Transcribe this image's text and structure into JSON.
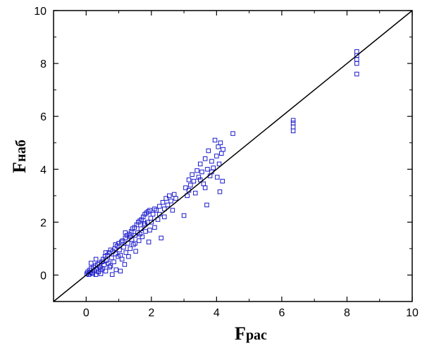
{
  "chart_data": {
    "type": "scatter",
    "title": "",
    "xlabel_main": "F",
    "xlabel_sub": "рас",
    "ylabel_main": "F",
    "ylabel_sub": "наб",
    "xlim": [
      -1,
      10
    ],
    "ylim": [
      -1,
      10
    ],
    "xticks": [
      0,
      2,
      4,
      6,
      8,
      10
    ],
    "yticks": [
      0,
      2,
      4,
      6,
      8,
      10
    ],
    "grid": false,
    "colors": {
      "points": "#1a1acc",
      "line": "#000000",
      "frame": "#000000"
    },
    "reference_line": {
      "from": [
        -1,
        -1
      ],
      "to": [
        10,
        10
      ]
    },
    "series": [
      {
        "points": [
          [
            0.02,
            0.05
          ],
          [
            0.05,
            0.12
          ],
          [
            0.08,
            0.02
          ],
          [
            0.1,
            0.18
          ],
          [
            0.12,
            0.08
          ],
          [
            0.15,
            0.25
          ],
          [
            0.18,
            0.1
          ],
          [
            0.2,
            0.05
          ],
          [
            0.22,
            0.3
          ],
          [
            0.25,
            0.15
          ],
          [
            0.28,
            0.35
          ],
          [
            0.3,
            0.02
          ],
          [
            0.32,
            0.22
          ],
          [
            0.35,
            0.4
          ],
          [
            0.38,
            0.12
          ],
          [
            0.4,
            0.45
          ],
          [
            0.42,
            0.3
          ],
          [
            0.45,
            0.05
          ],
          [
            0.48,
            0.5
          ],
          [
            0.5,
            0.25
          ],
          [
            0.52,
            0.6
          ],
          [
            0.55,
            0.38
          ],
          [
            0.58,
            0.7
          ],
          [
            0.6,
            0.15
          ],
          [
            0.62,
            0.55
          ],
          [
            0.65,
            0.75
          ],
          [
            0.68,
            0.45
          ],
          [
            0.7,
            0.85
          ],
          [
            0.72,
            0.3
          ],
          [
            0.75,
            0.95
          ],
          [
            0.78,
            0.65
          ],
          [
            0.8,
            0.02
          ],
          [
            0.82,
            0.9
          ],
          [
            0.85,
            0.5
          ],
          [
            0.88,
            1.0
          ],
          [
            0.9,
            0.8
          ],
          [
            0.92,
            0.2
          ],
          [
            0.95,
            1.1
          ],
          [
            0.98,
            0.7
          ],
          [
            1.0,
            1.2
          ],
          [
            1.02,
            0.95
          ],
          [
            1.05,
            0.15
          ],
          [
            1.08,
            1.25
          ],
          [
            1.1,
            0.6
          ],
          [
            1.12,
            1.3
          ],
          [
            1.15,
            1.05
          ],
          [
            1.18,
            0.4
          ],
          [
            1.2,
            1.4
          ],
          [
            1.22,
            0.85
          ],
          [
            1.25,
            1.5
          ],
          [
            1.28,
            1.2
          ],
          [
            1.3,
            0.7
          ],
          [
            1.32,
            1.55
          ],
          [
            1.35,
            1.0
          ],
          [
            1.38,
            1.65
          ],
          [
            1.4,
            1.35
          ],
          [
            1.42,
            1.75
          ],
          [
            1.45,
            1.15
          ],
          [
            1.48,
            1.8
          ],
          [
            1.5,
            1.5
          ],
          [
            1.52,
            0.9
          ],
          [
            1.55,
            1.9
          ],
          [
            1.58,
            1.6
          ],
          [
            1.6,
            2.0
          ],
          [
            1.62,
            1.3
          ],
          [
            1.65,
            2.05
          ],
          [
            1.68,
            1.75
          ],
          [
            1.7,
            2.1
          ],
          [
            1.72,
            1.45
          ],
          [
            1.75,
            2.2
          ],
          [
            1.78,
            1.9
          ],
          [
            1.8,
            2.3
          ],
          [
            1.82,
            1.65
          ],
          [
            1.85,
            2.35
          ],
          [
            1.88,
            2.0
          ],
          [
            1.9,
            2.4
          ],
          [
            1.92,
            1.25
          ],
          [
            1.95,
            2.45
          ],
          [
            1.98,
            2.15
          ],
          [
            2.0,
            2.0
          ],
          [
            2.05,
            2.3
          ],
          [
            2.1,
            1.8
          ],
          [
            2.15,
            2.45
          ],
          [
            2.2,
            2.1
          ],
          [
            2.25,
            2.6
          ],
          [
            2.3,
            1.4
          ],
          [
            2.35,
            2.75
          ],
          [
            2.4,
            2.5
          ],
          [
            2.45,
            2.9
          ],
          [
            2.5,
            2.65
          ],
          [
            2.55,
            3.0
          ],
          [
            2.6,
            2.8
          ],
          [
            2.65,
            2.45
          ],
          [
            2.7,
            3.05
          ],
          [
            2.75,
            2.9
          ],
          [
            3.0,
            2.25
          ],
          [
            3.05,
            3.3
          ],
          [
            3.1,
            3.0
          ],
          [
            3.15,
            3.6
          ],
          [
            3.2,
            3.4
          ],
          [
            3.25,
            3.8
          ],
          [
            3.3,
            3.55
          ],
          [
            3.35,
            3.1
          ],
          [
            3.4,
            3.95
          ],
          [
            3.45,
            3.7
          ],
          [
            3.5,
            4.2
          ],
          [
            3.55,
            3.9
          ],
          [
            3.6,
            3.45
          ],
          [
            3.65,
            4.4
          ],
          [
            3.7,
            2.65
          ],
          [
            3.72,
            4.0
          ],
          [
            3.75,
            4.7
          ],
          [
            3.8,
            3.75
          ],
          [
            3.85,
            4.3
          ],
          [
            3.9,
            4.05
          ],
          [
            3.95,
            5.1
          ],
          [
            4.0,
            4.5
          ],
          [
            4.02,
            3.7
          ],
          [
            4.05,
            4.85
          ],
          [
            4.08,
            4.2
          ],
          [
            4.1,
            3.15
          ],
          [
            4.12,
            5.0
          ],
          [
            4.15,
            4.6
          ],
          [
            4.18,
            3.55
          ],
          [
            4.2,
            4.75
          ],
          [
            4.5,
            5.35
          ],
          [
            6.35,
            5.45
          ],
          [
            6.35,
            5.6
          ],
          [
            6.35,
            5.75
          ],
          [
            6.35,
            5.85
          ],
          [
            8.3,
            7.6
          ],
          [
            8.3,
            8.0
          ],
          [
            8.3,
            8.15
          ],
          [
            8.3,
            8.3
          ],
          [
            8.3,
            8.45
          ],
          [
            0.15,
            0.45
          ],
          [
            0.3,
            0.6
          ],
          [
            0.45,
            0.2
          ],
          [
            0.6,
            0.85
          ],
          [
            0.75,
            0.35
          ],
          [
            0.9,
            1.15
          ],
          [
            1.05,
            0.75
          ],
          [
            1.2,
            1.6
          ],
          [
            1.35,
            1.45
          ],
          [
            1.5,
            1.2
          ],
          [
            1.65,
            1.55
          ],
          [
            1.8,
            1.95
          ],
          [
            1.95,
            1.7
          ],
          [
            2.1,
            2.5
          ],
          [
            2.25,
            2.3
          ],
          [
            2.4,
            2.2
          ],
          [
            3.15,
            3.2
          ],
          [
            3.5,
            3.6
          ],
          [
            3.65,
            3.3
          ],
          [
            3.85,
            3.9
          ]
        ]
      }
    ]
  }
}
